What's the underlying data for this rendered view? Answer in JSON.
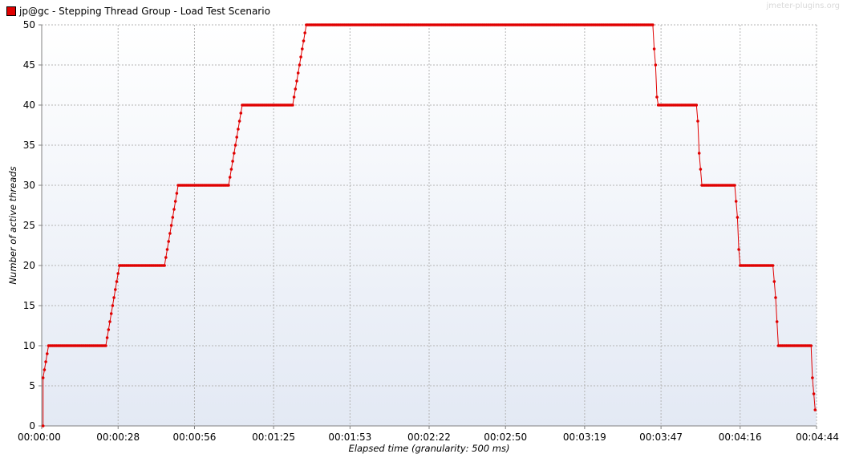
{
  "legend": {
    "label": "jp@gc - Stepping Thread Group - Load Test Scenario",
    "color": "#e00000"
  },
  "watermark": "jmeter-plugins.org",
  "chart_data": {
    "type": "line",
    "title": "",
    "xlabel": "Elapsed time (granularity: 500 ms)",
    "ylabel": "Number of active threads",
    "xlim": [
      0,
      284
    ],
    "ylim": [
      0,
      50
    ],
    "grid": true,
    "legend_position": "top-left",
    "x_ticks": [
      {
        "value": 0,
        "label": "00:00:00"
      },
      {
        "value": 28,
        "label": "00:00:28"
      },
      {
        "value": 56,
        "label": "00:00:56"
      },
      {
        "value": 85,
        "label": "00:01:25"
      },
      {
        "value": 113,
        "label": "00:01:53"
      },
      {
        "value": 142,
        "label": "00:02:22"
      },
      {
        "value": 170,
        "label": "00:02:50"
      },
      {
        "value": 199,
        "label": "00:03:19"
      },
      {
        "value": 227,
        "label": "00:03:47"
      },
      {
        "value": 256,
        "label": "00:04:16"
      },
      {
        "value": 284,
        "label": "00:04:44"
      }
    ],
    "y_ticks": [
      0,
      5,
      10,
      15,
      20,
      25,
      30,
      35,
      40,
      45,
      50
    ],
    "series": [
      {
        "name": "jp@gc - Stepping Thread Group - Load Test Scenario",
        "color": "#e00000",
        "x": [
          0.5,
          0.5,
          1,
          1.5,
          2,
          2.5,
          23.5,
          24,
          24.5,
          25,
          25.5,
          26,
          26.5,
          27,
          27.5,
          28,
          28.5,
          45,
          45.5,
          46,
          46.5,
          47,
          47.5,
          48,
          48.5,
          49,
          49.5,
          50,
          50.5,
          68.5,
          69,
          69.5,
          70,
          70.5,
          71,
          71.5,
          72,
          72.5,
          73,
          73.5,
          74,
          74.5,
          92,
          92.5,
          93,
          93.5,
          94,
          94.5,
          95,
          95.5,
          96,
          96.5,
          97,
          97.5,
          98,
          98.5,
          224,
          224.5,
          225,
          225.5,
          226,
          240,
          240.5,
          241,
          241.5,
          242,
          254,
          254.5,
          255,
          255.5,
          256,
          268,
          268.5,
          269,
          269.5,
          270,
          282,
          282.5,
          283,
          283.5
        ],
        "y": [
          0,
          6,
          7,
          8,
          9,
          10,
          10,
          11,
          12,
          13,
          14,
          15,
          16,
          17,
          18,
          19,
          20,
          20,
          21,
          22,
          23,
          24,
          25,
          26,
          27,
          28,
          29,
          30,
          30,
          30,
          31,
          32,
          33,
          34,
          35,
          36,
          37,
          38,
          39,
          40,
          40,
          40,
          40,
          41,
          42,
          43,
          44,
          45,
          46,
          47,
          48,
          49,
          50,
          50,
          50,
          50,
          50,
          47,
          45,
          41,
          40,
          40,
          38,
          34,
          32,
          30,
          30,
          28,
          26,
          22,
          20,
          20,
          18,
          16,
          13,
          10,
          10,
          6,
          4,
          2
        ]
      }
    ]
  }
}
